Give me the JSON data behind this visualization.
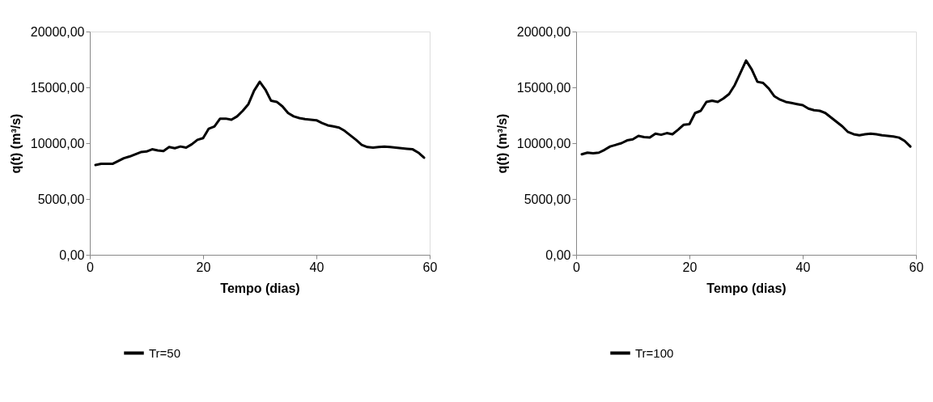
{
  "chart_data": [
    {
      "type": "line",
      "xlabel": "Tempo (dias)",
      "ylabel": "q(t) (m³/s)",
      "legend": "bottom",
      "grid": false,
      "marker": "none",
      "line_style": "solid",
      "x": [
        1,
        2,
        3,
        4,
        5,
        6,
        7,
        8,
        9,
        10,
        11,
        12,
        13,
        14,
        15,
        16,
        17,
        18,
        19,
        20,
        21,
        22,
        23,
        24,
        25,
        26,
        27,
        28,
        29,
        30,
        31,
        32,
        33,
        34,
        35,
        36,
        37,
        38,
        39,
        40,
        41,
        42,
        43,
        44,
        45,
        46,
        47,
        48,
        49,
        50,
        51,
        52,
        53,
        54,
        55,
        56,
        57,
        58,
        59
      ],
      "xlim": [
        0,
        60
      ],
      "xticks": [
        0,
        20,
        40,
        60
      ],
      "ylim": [
        0,
        20000
      ],
      "yticks": [
        {
          "value": 0,
          "label": "0,00"
        },
        {
          "value": 5000,
          "label": "5000,00"
        },
        {
          "value": 10000,
          "label": "10000,00"
        },
        {
          "value": 15000,
          "label": "15000,00"
        },
        {
          "value": 20000,
          "label": "20000,00"
        }
      ],
      "series": [
        {
          "name": "Tr=50",
          "color": "#000000",
          "values": [
            8050,
            8150,
            8150,
            8150,
            8400,
            8650,
            8800,
            9000,
            9200,
            9250,
            9450,
            9350,
            9300,
            9650,
            9550,
            9700,
            9600,
            9900,
            10300,
            10450,
            11300,
            11500,
            12200,
            12200,
            12100,
            12400,
            12900,
            13500,
            14700,
            15500,
            14800,
            13800,
            13700,
            13300,
            12700,
            12400,
            12250,
            12150,
            12100,
            12050,
            11800,
            11600,
            11500,
            11400,
            11100,
            10700,
            10300,
            9850,
            9650,
            9600,
            9650,
            9700,
            9650,
            9600,
            9550,
            9500,
            9450,
            9150,
            8700
          ]
        }
      ]
    },
    {
      "type": "line",
      "xlabel": "Tempo (dias)",
      "ylabel": "q(t) (m³/s)",
      "legend": "bottom",
      "grid": false,
      "marker": "none",
      "line_style": "solid",
      "x": [
        1,
        2,
        3,
        4,
        5,
        6,
        7,
        8,
        9,
        10,
        11,
        12,
        13,
        14,
        15,
        16,
        17,
        18,
        19,
        20,
        21,
        22,
        23,
        24,
        25,
        26,
        27,
        28,
        29,
        30,
        31,
        32,
        33,
        34,
        35,
        36,
        37,
        38,
        39,
        40,
        41,
        42,
        43,
        44,
        45,
        46,
        47,
        48,
        49,
        50,
        51,
        52,
        53,
        54,
        55,
        56,
        57,
        58,
        59
      ],
      "xlim": [
        0,
        60
      ],
      "xticks": [
        0,
        20,
        40,
        60
      ],
      "ylim": [
        0,
        20000
      ],
      "yticks": [
        {
          "value": 0,
          "label": "0,00"
        },
        {
          "value": 5000,
          "label": "5000,00"
        },
        {
          "value": 10000,
          "label": "10000,00"
        },
        {
          "value": 15000,
          "label": "15000,00"
        },
        {
          "value": 20000,
          "label": "20000,00"
        }
      ],
      "series": [
        {
          "name": "Tr=100",
          "color": "#000000",
          "values": [
            9000,
            9150,
            9100,
            9150,
            9400,
            9700,
            9850,
            10000,
            10250,
            10350,
            10650,
            10550,
            10500,
            10850,
            10750,
            10900,
            10800,
            11200,
            11650,
            11700,
            12700,
            12900,
            13700,
            13800,
            13700,
            14000,
            14400,
            15200,
            16300,
            17400,
            16600,
            15500,
            15400,
            14900,
            14200,
            13900,
            13700,
            13600,
            13500,
            13400,
            13100,
            12950,
            12900,
            12700,
            12300,
            11900,
            11500,
            11000,
            10800,
            10700,
            10800,
            10850,
            10800,
            10700,
            10650,
            10600,
            10500,
            10200,
            9700
          ]
        }
      ]
    }
  ]
}
